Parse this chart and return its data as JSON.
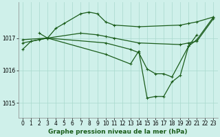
{
  "title": "Graphe pression niveau de la mer (hPa)",
  "background_color": "#cff0ea",
  "line_color": "#1a5c1a",
  "grid_color": "#a8d8cc",
  "xlim": [
    -0.5,
    23.5
  ],
  "ylim": [
    1014.55,
    1018.1
  ],
  "yticks": [
    1015,
    1016,
    1017
  ],
  "xticks": [
    0,
    1,
    2,
    3,
    4,
    5,
    6,
    7,
    8,
    9,
    10,
    11,
    12,
    13,
    14,
    15,
    16,
    17,
    18,
    19,
    20,
    21,
    22,
    23
  ],
  "series": [
    {
      "x": [
        2,
        3,
        4,
        5,
        7,
        8,
        9,
        10,
        11,
        14,
        19,
        20,
        21,
        23
      ],
      "y": [
        1017.15,
        1017.0,
        1017.3,
        1017.45,
        1017.75,
        1017.8,
        1017.75,
        1017.5,
        1017.4,
        1017.35,
        1017.4,
        1017.45,
        1017.5,
        1017.65
      ]
    },
    {
      "x": [
        0,
        3,
        7,
        9,
        10,
        11,
        14,
        19,
        20,
        21,
        23
      ],
      "y": [
        1016.95,
        1017.0,
        1017.15,
        1017.1,
        1017.05,
        1017.0,
        1016.85,
        1016.8,
        1016.85,
        1016.9,
        1017.6
      ]
    },
    {
      "x": [
        0,
        3,
        10,
        13,
        14,
        15,
        16,
        17,
        18,
        20,
        21,
        23
      ],
      "y": [
        1016.85,
        1017.0,
        1016.85,
        1016.65,
        1016.55,
        1016.05,
        1015.9,
        1015.9,
        1015.8,
        1016.75,
        1016.95,
        1017.65
      ]
    },
    {
      "x": [
        0,
        1,
        2,
        3,
        10,
        13,
        14,
        15,
        16,
        17,
        18,
        19,
        20,
        21
      ],
      "y": [
        1016.65,
        1016.9,
        1016.95,
        1017.0,
        1016.5,
        1016.2,
        1016.6,
        1015.15,
        1015.2,
        1015.2,
        1015.65,
        1015.85,
        1016.75,
        1017.1
      ]
    }
  ],
  "tick_fontsize": 5.5,
  "title_fontsize": 6.5,
  "linewidth": 0.9,
  "markersize": 3.5,
  "markeredgewidth": 0.8
}
